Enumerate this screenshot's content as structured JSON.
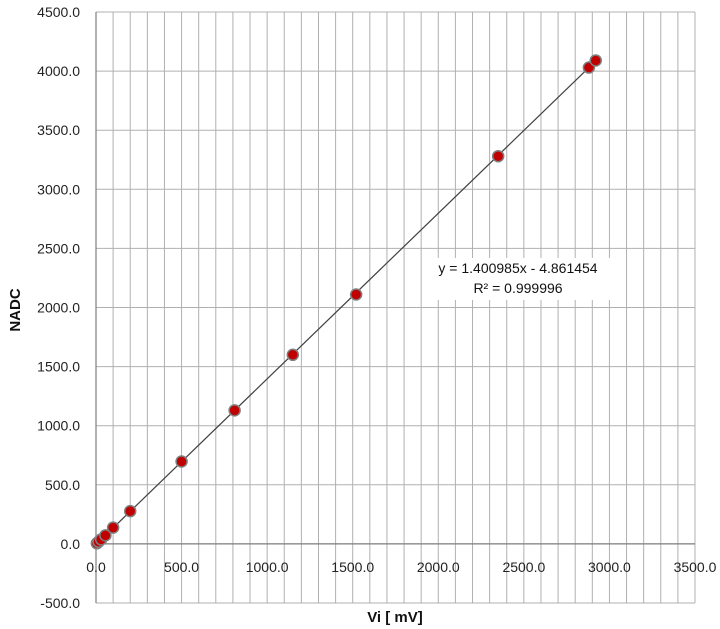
{
  "chart_data": {
    "type": "scatter",
    "xlabel": "Vi [ mV]",
    "ylabel": "NADC",
    "xlim": [
      0,
      3500
    ],
    "ylim": [
      -500,
      4500
    ],
    "x_ticks": [
      "0.0",
      "500.0",
      "1000.0",
      "1500.0",
      "2000.0",
      "2500.0",
      "3000.0",
      "3500.0"
    ],
    "y_ticks": [
      "4500.0",
      "4000.0",
      "3500.0",
      "3000.0",
      "2500.0",
      "2000.0",
      "1500.0",
      "1000.0",
      "500.0",
      "0.0",
      "-500.0"
    ],
    "grid": {
      "x_step": 100,
      "y_step": 500
    },
    "points": [
      {
        "x": 5,
        "y": 5
      },
      {
        "x": 15,
        "y": 18
      },
      {
        "x": 30,
        "y": 38
      },
      {
        "x": 55,
        "y": 72
      },
      {
        "x": 100,
        "y": 138
      },
      {
        "x": 200,
        "y": 277
      },
      {
        "x": 500,
        "y": 697
      },
      {
        "x": 810,
        "y": 1130
      },
      {
        "x": 1150,
        "y": 1600
      },
      {
        "x": 1520,
        "y": 2110
      },
      {
        "x": 2350,
        "y": 3280
      },
      {
        "x": 2880,
        "y": 4030
      },
      {
        "x": 2920,
        "y": 4090
      }
    ],
    "trendline": {
      "slope": 1.400985,
      "intercept": -4.861454,
      "equation": "y = 1.400985x - 4.861454",
      "r2": "R² = 0.999996"
    },
    "colors": {
      "marker_fill": "#c00000",
      "marker_edge": "#7f7f7f",
      "line": "#404040",
      "grid": "#b0b0b0"
    }
  }
}
